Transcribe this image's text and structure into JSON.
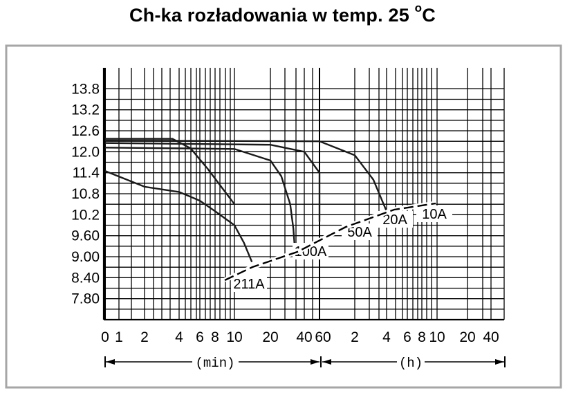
{
  "title": {
    "text": "Ch-ka rozładowania w temp. 25 ",
    "degree": "o",
    "unit": "C"
  },
  "colors": {
    "curve": "#1a1a1a",
    "grid": "#000000",
    "frame": "#a6a6a6"
  },
  "axis_units": {
    "min": "(min)",
    "h": "(h)"
  },
  "chart_data": {
    "type": "line",
    "title": "Ch-ka rozładowania w temp. 25 °C",
    "xlabel": "",
    "ylabel": "",
    "x_axis_segments": [
      {
        "unit": "min",
        "tick_labels": [
          "0",
          "1",
          "2",
          "4",
          "6",
          "8",
          "10",
          "20",
          "40"
        ]
      },
      {
        "unit": "h",
        "tick_labels": [
          "60",
          "2",
          "4",
          "6",
          "8",
          "10",
          "20",
          "40"
        ]
      }
    ],
    "x_tick_labels": [
      "0",
      "1",
      "2",
      "4",
      "6",
      "8",
      "10",
      "20",
      "40",
      "60",
      "2",
      "4",
      "6",
      "8",
      "10",
      "20",
      "40"
    ],
    "y_tick_labels": [
      "13.8",
      "13.2",
      "12.6",
      "12.0",
      "11.4",
      "10.8",
      "10.2",
      "9.60",
      "9.00",
      "8.40",
      "7.80"
    ],
    "ylim": [
      7.2,
      14.4
    ],
    "grid": true,
    "x_scale": "log",
    "series": [
      {
        "name": "211A",
        "label": "211A",
        "points": [
          [
            0.1,
            11.45
          ],
          [
            2,
            11.0
          ],
          [
            4,
            10.85
          ],
          [
            6,
            10.6
          ],
          [
            8,
            10.3
          ],
          [
            10,
            9.9
          ],
          [
            12,
            9.4
          ],
          [
            14,
            8.85
          ]
        ]
      },
      {
        "name": "100A",
        "label": "100A",
        "points": [
          [
            0.1,
            12.12
          ],
          [
            10,
            12.08
          ],
          [
            20,
            11.75
          ],
          [
            25,
            11.3
          ],
          [
            30,
            10.5
          ],
          [
            32,
            9.8
          ],
          [
            33,
            9.2
          ]
        ]
      },
      {
        "name": "50A",
        "label": "50A",
        "points": [
          [
            0.1,
            12.25
          ],
          [
            20,
            12.2
          ],
          [
            40,
            12.0
          ],
          [
            60,
            11.4
          ],
          [
            70,
            10.7
          ],
          [
            78,
            10.0
          ]
        ]
      },
      {
        "name": "20A",
        "label": "20A",
        "points": [
          [
            0.1,
            12.32
          ],
          [
            60,
            12.3
          ],
          [
            2,
            11.9
          ],
          [
            3,
            11.2
          ],
          [
            4,
            10.3
          ]
        ]
      },
      {
        "name": "10A",
        "label": "10A",
        "points": [
          [
            0.1,
            12.37
          ],
          [
            3.5,
            12.37
          ],
          [
            5,
            12.1
          ],
          [
            7,
            11.5
          ],
          [
            10,
            10.5
          ]
        ]
      }
    ],
    "cutoff_line": "dashed"
  }
}
